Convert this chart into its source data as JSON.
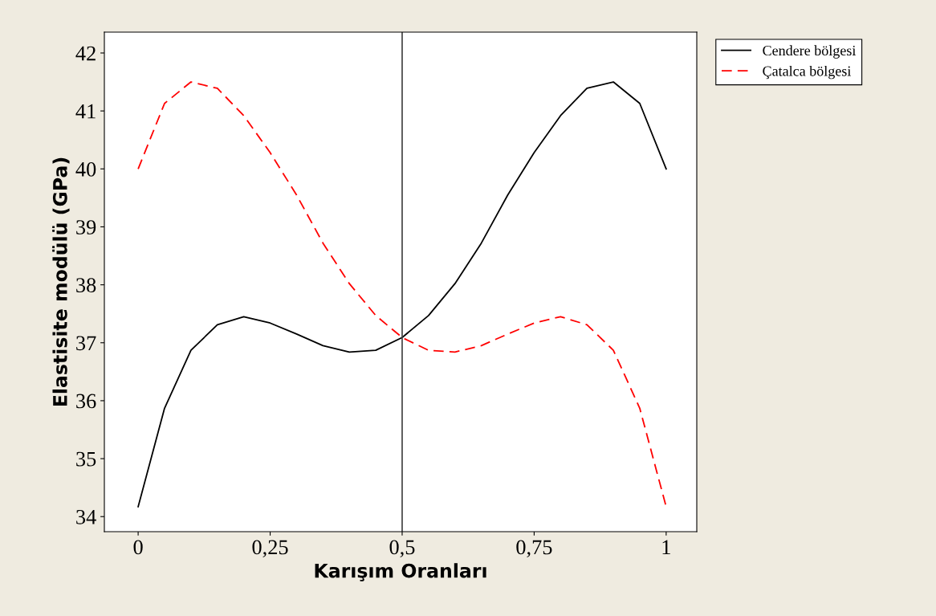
{
  "chart_data": {
    "type": "line",
    "xlabel": "Karışım Oranları",
    "ylabel": "Elastisite modülü (GPa)",
    "x": [
      0,
      0.05,
      0.1,
      0.15,
      0.2,
      0.25,
      0.3,
      0.35,
      0.4,
      0.45,
      0.5,
      0.55,
      0.6,
      0.65,
      0.7,
      0.75,
      0.8,
      0.85,
      0.9,
      0.95,
      1
    ],
    "series": [
      {
        "name": "Cendere bölgesi",
        "color": "#000000",
        "line_style": "solid",
        "values": [
          34.17,
          35.87,
          36.87,
          37.31,
          37.45,
          37.34,
          37.15,
          36.95,
          36.84,
          36.87,
          37.09,
          37.47,
          38.02,
          38.72,
          39.55,
          40.28,
          40.92,
          41.39,
          41.5,
          41.13,
          40.0
        ]
      },
      {
        "name": "Çatalca bölgesi",
        "color": "#ff0000",
        "line_style": "dashed",
        "values": [
          40.0,
          41.13,
          41.5,
          41.39,
          40.92,
          40.28,
          39.55,
          38.72,
          38.02,
          37.47,
          37.09,
          36.87,
          36.84,
          36.95,
          37.15,
          37.34,
          37.45,
          37.31,
          36.87,
          35.87,
          34.17
        ]
      }
    ],
    "xlim": [
      -0.064,
      1.058
    ],
    "ylim": [
      33.74,
      42.36
    ],
    "xticks": [
      {
        "value": 0,
        "label": "0"
      },
      {
        "value": 0.25,
        "label": "0,25"
      },
      {
        "value": 0.5,
        "label": "0,5"
      },
      {
        "value": 0.75,
        "label": "0,75"
      },
      {
        "value": 1,
        "label": "1"
      }
    ],
    "yticks": [
      34,
      35,
      36,
      37,
      38,
      39,
      40,
      41,
      42
    ],
    "ref_lines": [
      {
        "axis": "x",
        "value": 0.5,
        "color": "#404040"
      }
    ],
    "grid": false,
    "legend": "top right",
    "marker": "none"
  }
}
